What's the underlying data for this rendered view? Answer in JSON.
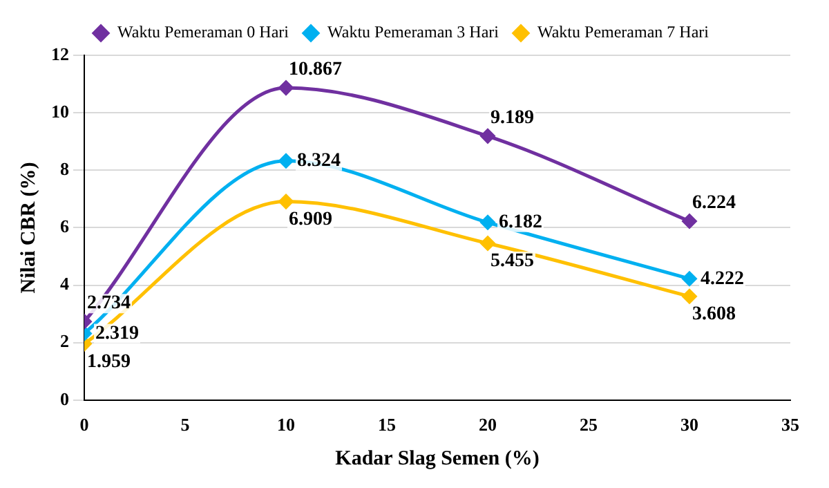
{
  "chart_data": {
    "type": "line",
    "x": [
      0,
      10,
      20,
      30
    ],
    "series": [
      {
        "name": "Waktu Pemeraman 0 Hari",
        "color": "#7030a0",
        "values": [
          2.734,
          10.867,
          9.189,
          6.224
        ]
      },
      {
        "name": "Waktu Pemeraman 3 Hari",
        "color": "#00b0f0",
        "values": [
          2.319,
          8.324,
          6.182,
          4.222
        ]
      },
      {
        "name": "Waktu Pemeraman 7 Hari",
        "color": "#ffc000",
        "values": [
          1.959,
          6.909,
          5.455,
          3.608
        ]
      }
    ],
    "xlabel": "Kadar Slag Semen (%)",
    "ylabel": "Nilai CBR (%)",
    "xlim": [
      0,
      35
    ],
    "xticks": [
      0,
      5,
      10,
      15,
      20,
      25,
      30,
      35
    ],
    "ylim": [
      0,
      12
    ],
    "yticks": [
      0,
      2,
      4,
      6,
      8,
      10,
      12
    ],
    "grid": "y",
    "legend": "top",
    "marker": "diamond",
    "line_style": "solid",
    "data_labels": true
  }
}
